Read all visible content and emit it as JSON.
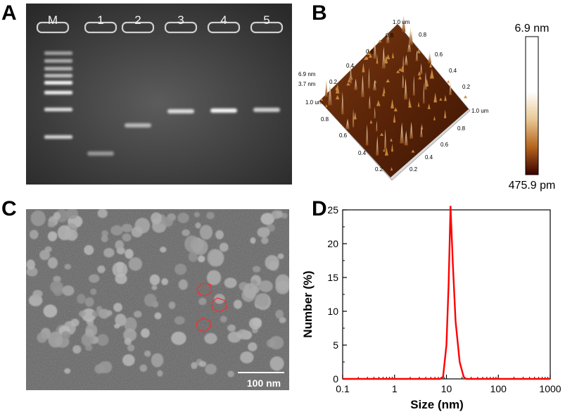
{
  "panels": {
    "a": {
      "letter": "A",
      "lane_labels": [
        "M",
        "1",
        "2",
        "3",
        "4",
        "5"
      ]
    },
    "b": {
      "letter": "B",
      "colorbar_max": "6.9 nm",
      "colorbar_min": "475.9 pm",
      "z_labels": [
        "6.9 nm",
        "3.7 nm"
      ],
      "axis_edge_label": "1.0 um",
      "tick_labels_a": [
        "1.0 um",
        "0.8",
        "0.6",
        "0.4",
        "0.2"
      ],
      "tick_labels_b": [
        "0.8",
        "0.6",
        "0.4",
        "0.2"
      ],
      "tick_labels_c": [
        "0.8",
        "0.6",
        "0.4",
        "0.2"
      ],
      "tick_labels_d": [
        "0.8",
        "0.6",
        "0.4",
        "0.2"
      ],
      "colors": {
        "low": "#3a0000",
        "mid": "#b5651d",
        "high": "#ffffff"
      }
    },
    "c": {
      "letter": "C",
      "scale_bar": "100 nm"
    },
    "d": {
      "letter": "D"
    }
  },
  "chart_data": {
    "type": "line",
    "xlabel": "Size (nm)",
    "ylabel": "Number (%)",
    "xscale": "log",
    "xlim": [
      0.1,
      1000
    ],
    "ylim": [
      0,
      25
    ],
    "xticks": [
      "0.1",
      "1",
      "10",
      "100",
      "1000"
    ],
    "yticks": [
      "0",
      "5",
      "10",
      "15",
      "20",
      "25"
    ],
    "series": [
      {
        "color": "#ff0000",
        "x": [
          0.1,
          7.5,
          8.6,
          10.0,
          11.0,
          12.0,
          13.3,
          15.0,
          18.0,
          21.5,
          24.0,
          1000
        ],
        "y": [
          0,
          0,
          0.3,
          5.0,
          14.0,
          25.5,
          17.0,
          8.5,
          2.5,
          0.3,
          0,
          0
        ]
      }
    ]
  }
}
